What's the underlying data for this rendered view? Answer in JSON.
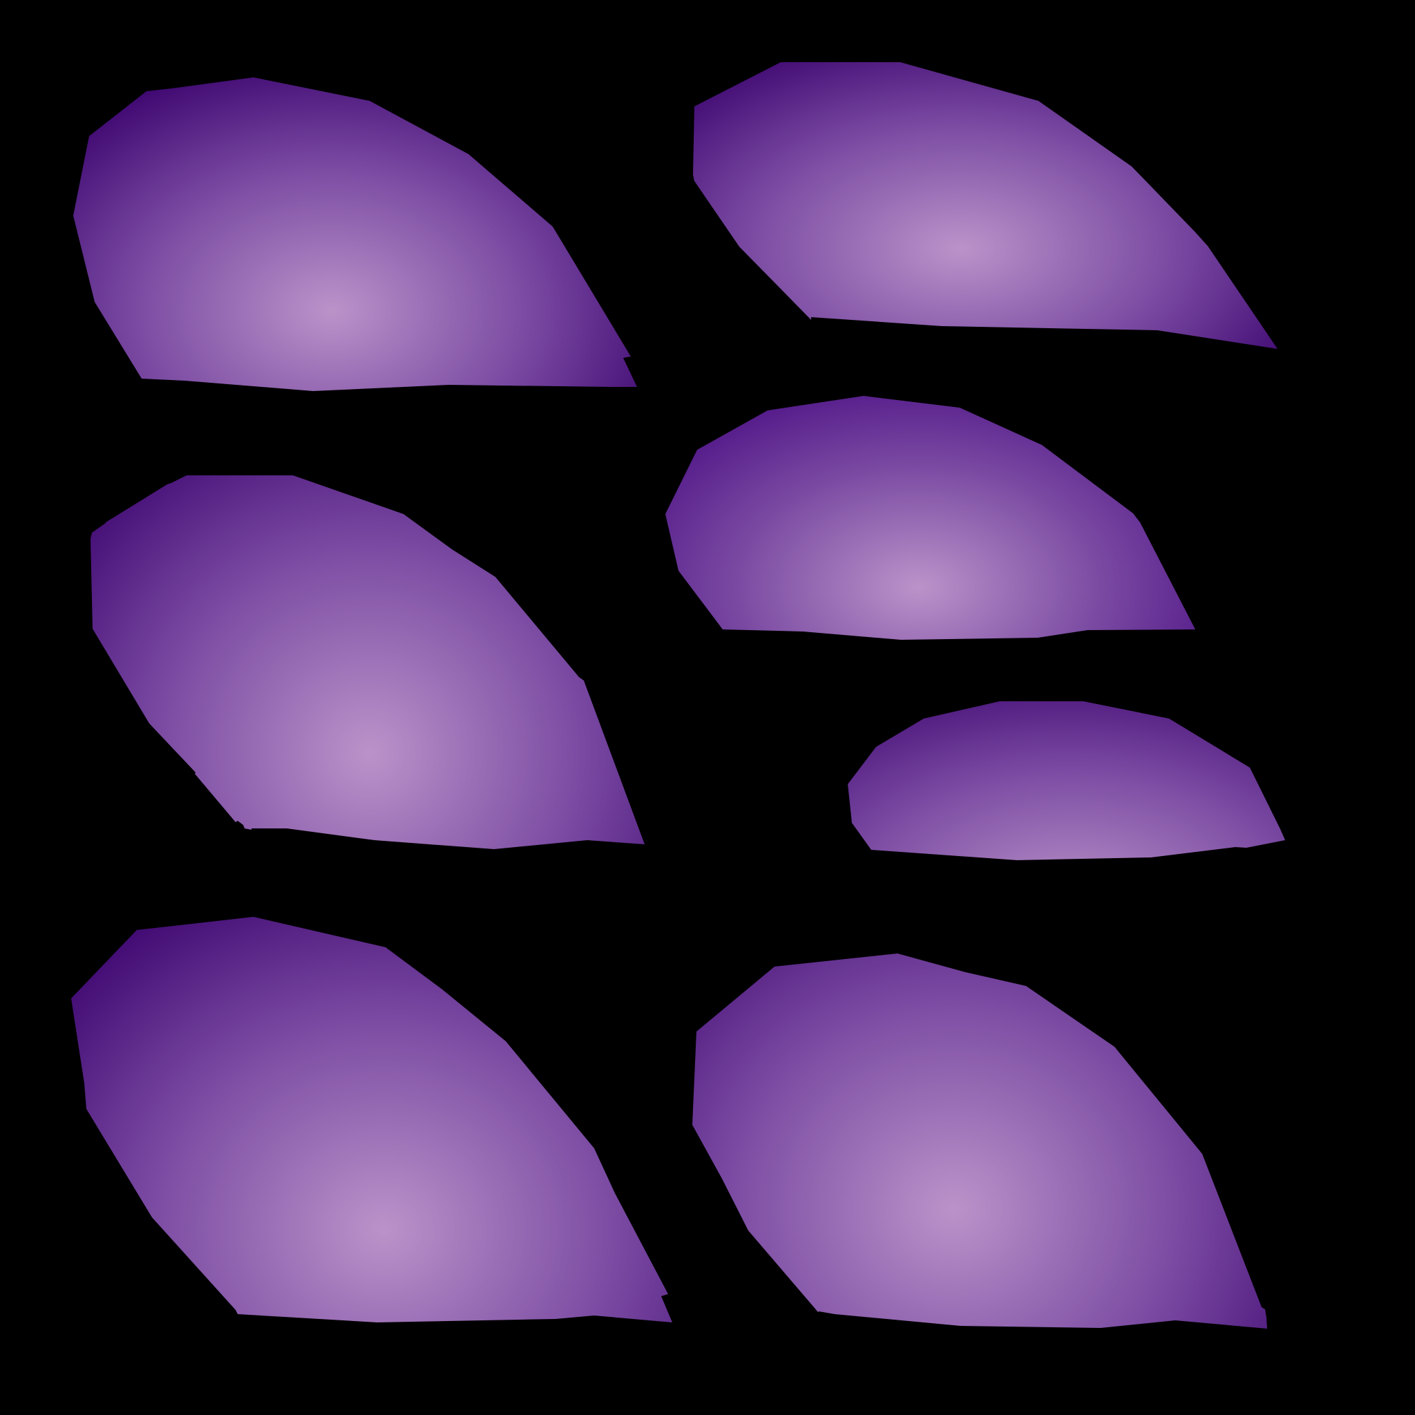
{
  "background_color": "#000000",
  "colors": {
    "shape_edge_dark": "#3d0670",
    "shape_edge_mid": "#4e1386",
    "shape_center_light": "#bb93c9"
  },
  "shapes": [
    {
      "name": "blob-top-left"
    },
    {
      "name": "blob-top-right"
    },
    {
      "name": "blob-middle-left"
    },
    {
      "name": "blob-middle-right"
    },
    {
      "name": "blob-lower-right-small"
    },
    {
      "name": "blob-bottom-left"
    },
    {
      "name": "blob-bottom-right"
    }
  ]
}
